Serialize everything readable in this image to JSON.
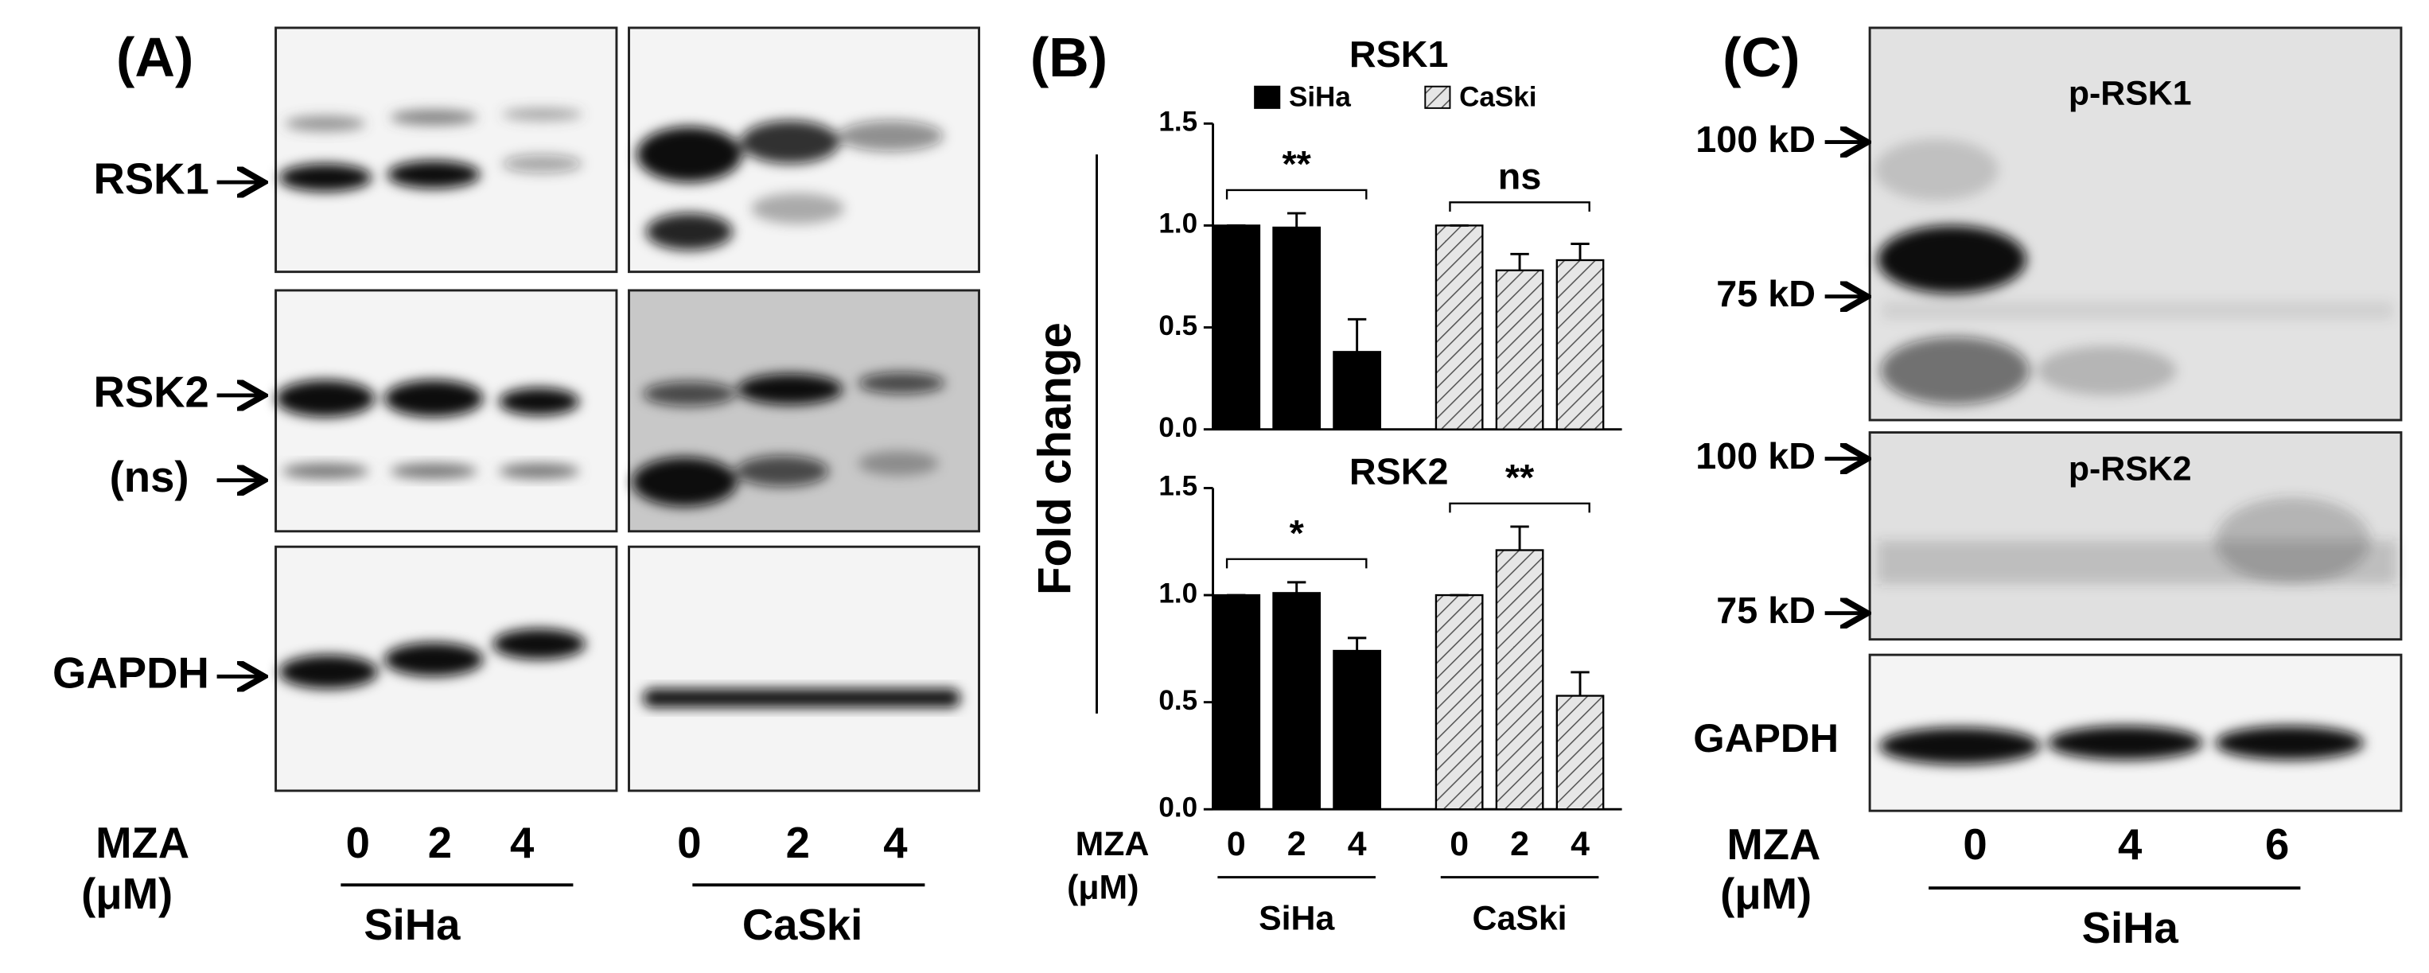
{
  "panel_a": {
    "label": "(A)",
    "row_labels": [
      "RSK1",
      "RSK2",
      "(ns)",
      "GAPDH"
    ],
    "dose_label": "MZA",
    "dose_unit": "(μM)",
    "doses": [
      [
        "0",
        "2",
        "4"
      ],
      [
        "0",
        "2",
        "4"
      ]
    ],
    "cell_lines": [
      "SiHa",
      "CaSki"
    ]
  },
  "panel_b": {
    "label": "(B)"
  },
  "chart_data": [
    {
      "type": "bar",
      "title": "RSK1",
      "ylabel": "Fold change",
      "ylim": [
        0,
        1.5
      ],
      "yticks": [
        {
          "value": 0,
          "label": "0.0"
        },
        0.5,
        {
          "value": 1,
          "label": "1.0"
        },
        1.5
      ],
      "series": [
        {
          "name": "SiHa",
          "color": "#000000",
          "values": [
            1,
            0.99,
            0.38,
            null,
            null,
            null
          ],
          "errors": [
            0,
            0.07,
            0.16,
            null,
            null,
            null
          ]
        },
        {
          "name": "CaSki",
          "color": "#d9d9d9",
          "hatch": true,
          "values": [
            null,
            null,
            null,
            1,
            0.78,
            0.83
          ],
          "errors": [
            null,
            null,
            null,
            0,
            0.08,
            0.08
          ]
        }
      ],
      "annotations": [
        "**",
        "ns"
      ]
    },
    {
      "type": "bar",
      "title": "RSK2",
      "ylim": [
        0,
        1.5
      ],
      "yticks": [
        {
          "value": 0,
          "label": "0.0"
        },
        0.5,
        {
          "value": 1,
          "label": "1.0"
        },
        1.5
      ],
      "categories": [
        "0",
        "2",
        "4",
        "0",
        "2",
        "4"
      ],
      "xlabel": "MZA",
      "xunit": "(μM)",
      "groups": [
        "SiHa",
        "CaSki"
      ],
      "series": [
        {
          "color": "#000000",
          "values": [
            1,
            1.01,
            0.74,
            null,
            null,
            null
          ],
          "errors": [
            0,
            0.05,
            0.06,
            null,
            null,
            null
          ]
        },
        {
          "color": "#d9d9d9",
          "hatch": true,
          "values": [
            null,
            null,
            null,
            1,
            1.21,
            0.53
          ],
          "errors": [
            null,
            null,
            null,
            0,
            0.11,
            0.11
          ]
        }
      ],
      "annotations": [
        "*",
        "**"
      ]
    }
  ],
  "panel_c": {
    "label": "(C)",
    "markers": [
      "100 kD",
      "75 kD",
      "100 kD",
      "75 kD"
    ],
    "blot_labels": [
      "p-RSK1",
      "p-RSK2"
    ],
    "loading_label": "GAPDH",
    "dose_label": "MZA",
    "dose_unit": "(μM)",
    "doses": [
      "0",
      "4",
      "6"
    ],
    "cell_line": "SiHa"
  }
}
